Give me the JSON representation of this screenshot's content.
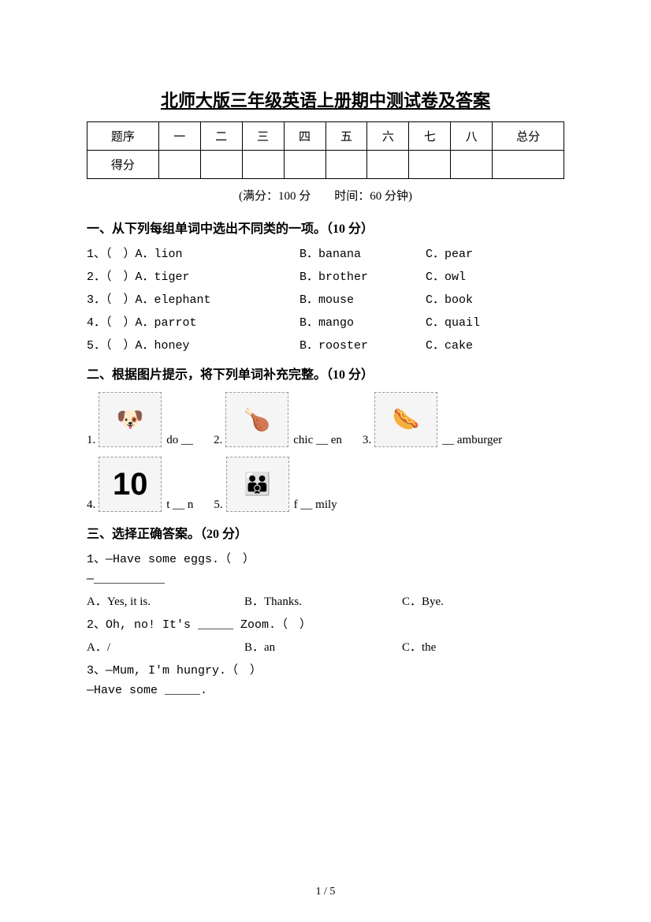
{
  "title": "北师大版三年级英语上册期中测试卷及答案",
  "score_table": {
    "row1_label": "题序",
    "cols": [
      "一",
      "二",
      "三",
      "四",
      "五",
      "六",
      "七",
      "八"
    ],
    "total_label": "总分",
    "row2_label": "得分"
  },
  "meta": "(满分：100 分　　时间：60 分钟)",
  "section1": {
    "header": "一、从下列每组单词中选出不同类的一项。（10 分）",
    "rows": [
      {
        "num": "1、（　）A．lion",
        "b": "B．banana",
        "c": "C．pear"
      },
      {
        "num": "2．（　）A．tiger",
        "b": "B．brother",
        "c": "C．owl"
      },
      {
        "num": "3．（　）A．elephant",
        "b": "B．mouse",
        "c": "C．book"
      },
      {
        "num": "4．（　）A．parrot",
        "b": "B．mango",
        "c": "C．quail"
      },
      {
        "num": "5．（　）A．honey",
        "b": "B．rooster",
        "c": "C．cake"
      }
    ]
  },
  "section2": {
    "header": "二、根据图片提示，将下列单词补充完整。（10 分）",
    "row1": [
      {
        "num": "1.",
        "icon": "🐶",
        "word": "do __"
      },
      {
        "num": "2.",
        "icon": "🍗",
        "word": "chic __ en"
      },
      {
        "num": "3.",
        "icon": "🌭",
        "word": "__ amburger"
      }
    ],
    "row2": [
      {
        "num": "4.",
        "icon": "10",
        "word": "t __ n"
      },
      {
        "num": "5.",
        "icon": "👪",
        "word": "f __ mily"
      }
    ]
  },
  "section3": {
    "header": "三、选择正确答案。（20 分）",
    "q1_line1": "1、—Have some eggs.（　）",
    "q1_line2": "—__________",
    "q1_opts": {
      "a": "A．Yes, it is.",
      "b": "B．Thanks.",
      "c": "C．Bye."
    },
    "q2_line": "2、Oh, no! It's _____ Zoom.（　）",
    "q2_opts": {
      "a": "A．/",
      "b": "B．an",
      "c": "C．the"
    },
    "q3_line1": "3、—Mum, I'm hungry.（　）",
    "q3_line2": "—Have some _____."
  },
  "pagenum": "1 / 5",
  "colors": {
    "text": "#000000",
    "bg": "#ffffff",
    "placeholder_border": "#999999",
    "placeholder_bg": "#f5f5f5"
  }
}
